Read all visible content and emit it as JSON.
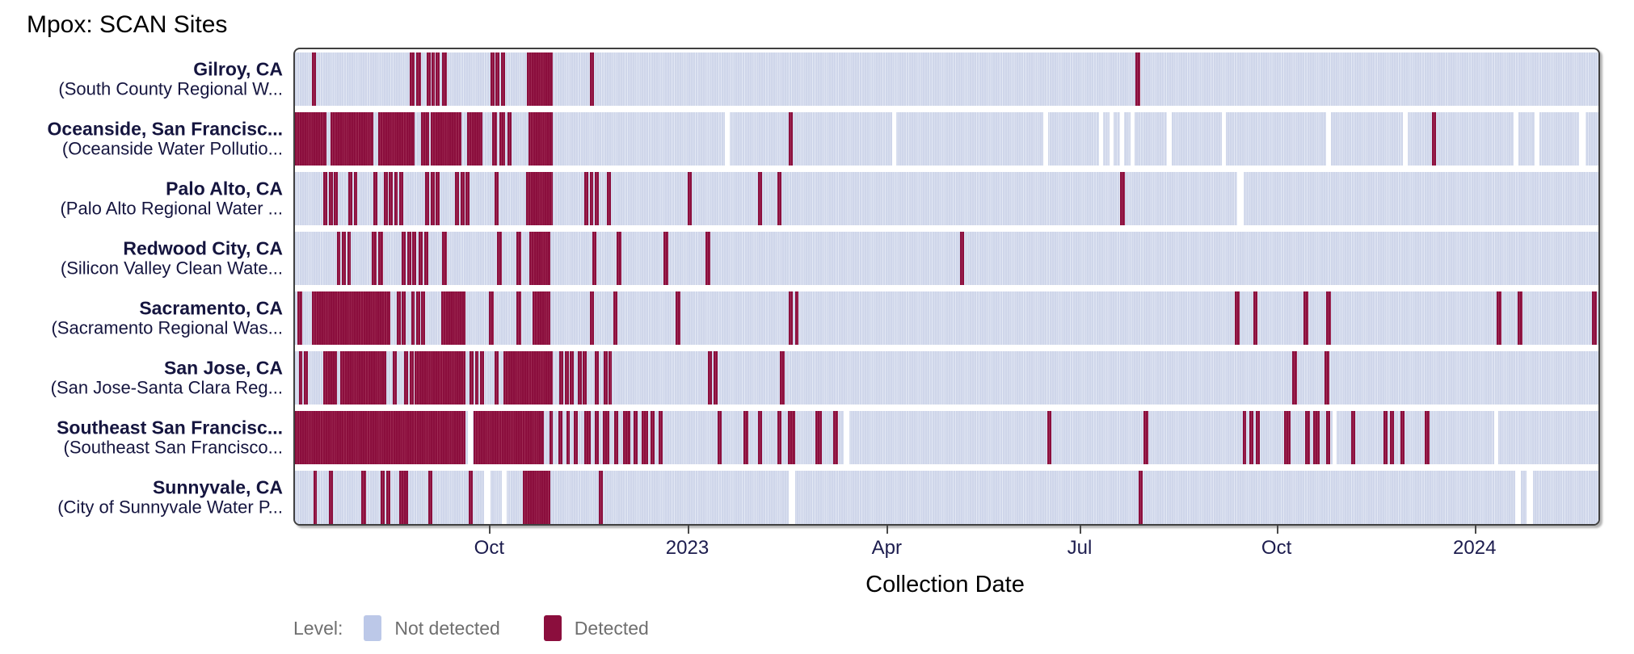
{
  "chart_data": {
    "type": "heatmap",
    "title": "Mpox: SCAN Sites",
    "xlabel": "Collection Date",
    "grid": false,
    "x_ticks": [
      {
        "label": "Oct",
        "pos_pct": 14.9
      },
      {
        "label": "2023",
        "pos_pct": 30.1
      },
      {
        "label": "Apr",
        "pos_pct": 45.4
      },
      {
        "label": "Jul",
        "pos_pct": 60.2
      },
      {
        "label": "Oct",
        "pos_pct": 75.3
      },
      {
        "label": "2024",
        "pos_pct": 90.5
      }
    ],
    "legend": {
      "title": "Level:",
      "position": "bottom-left",
      "items": [
        {
          "label": "Not detected",
          "color": "#bcc8e8"
        },
        {
          "label": "Detected",
          "color": "#8b0e3d"
        }
      ]
    },
    "colors": {
      "not_detected_base": "#cfd6ea",
      "not_detected_stripe": "#e3e8f4",
      "detected": "#8b0e3d",
      "missing": "#ffffff",
      "label_text": "#15153f",
      "tick_text": "#1c1c4e",
      "legend_text": "#6f6f6f",
      "panel_border": "#404040"
    },
    "series": [
      {
        "site": "Gilroy, CA",
        "facility": "(South County Regional W...",
        "detected_pct": [
          [
            1.3,
            0.3
          ],
          [
            8.8,
            0.35
          ],
          [
            9.3,
            0.35
          ],
          [
            10.1,
            0.3
          ],
          [
            10.45,
            0.3
          ],
          [
            10.8,
            0.3
          ],
          [
            11.3,
            0.35
          ],
          [
            15.0,
            0.3
          ],
          [
            15.4,
            0.3
          ],
          [
            15.8,
            0.3
          ],
          [
            17.8,
            2.0
          ],
          [
            22.6,
            0.35
          ],
          [
            64.5,
            0.35
          ]
        ],
        "missing_pct": []
      },
      {
        "site": "Oceanside, San Francisc...",
        "facility": "(Oceanside Water Pollutio...",
        "detected_pct": [
          [
            0,
            2.4
          ],
          [
            2.7,
            3.3
          ],
          [
            6.4,
            2.8
          ],
          [
            9.7,
            0.6
          ],
          [
            10.4,
            2.4
          ],
          [
            13.2,
            1.2
          ],
          [
            15.1,
            0.4
          ],
          [
            15.7,
            0.4
          ],
          [
            16.3,
            0.3
          ],
          [
            17.9,
            1.9
          ],
          [
            37.9,
            0.3
          ],
          [
            87.2,
            0.35
          ]
        ],
        "missing_pct": [
          [
            33.0,
            0.35
          ],
          [
            45.8,
            0.35
          ],
          [
            57.4,
            0.35
          ],
          [
            61.7,
            0.3
          ],
          [
            62.5,
            0.3
          ],
          [
            63.3,
            0.3
          ],
          [
            64.1,
            0.3
          ],
          [
            66.9,
            0.35
          ],
          [
            71.1,
            0.35
          ],
          [
            79.1,
            0.35
          ],
          [
            85.0,
            0.35
          ],
          [
            93.5,
            0.35
          ],
          [
            95.1,
            0.35
          ],
          [
            98.5,
            0.5
          ]
        ]
      },
      {
        "site": "Palo Alto, CA",
        "facility": "(Palo Alto Regional Water ...",
        "detected_pct": [
          [
            2.2,
            0.3
          ],
          [
            2.6,
            0.3
          ],
          [
            3.0,
            0.3
          ],
          [
            4.1,
            0.3
          ],
          [
            4.5,
            0.3
          ],
          [
            6.0,
            0.35
          ],
          [
            6.8,
            0.3
          ],
          [
            7.2,
            0.3
          ],
          [
            7.6,
            0.3
          ],
          [
            8.0,
            0.3
          ],
          [
            10.0,
            0.3
          ],
          [
            10.4,
            0.3
          ],
          [
            10.8,
            0.3
          ],
          [
            12.3,
            0.3
          ],
          [
            12.7,
            0.3
          ],
          [
            13.1,
            0.3
          ],
          [
            15.3,
            0.35
          ],
          [
            17.7,
            2.1
          ],
          [
            22.2,
            0.3
          ],
          [
            22.6,
            0.3
          ],
          [
            23.0,
            0.3
          ],
          [
            23.9,
            0.35
          ],
          [
            30.1,
            0.35
          ],
          [
            35.5,
            0.35
          ],
          [
            37.0,
            0.35
          ],
          [
            63.3,
            0.35
          ]
        ],
        "missing_pct": [
          [
            72.3,
            0.5
          ]
        ]
      },
      {
        "site": "Redwood City, CA",
        "facility": "(Silicon Valley Clean Wate...",
        "detected_pct": [
          [
            3.2,
            0.3
          ],
          [
            3.6,
            0.3
          ],
          [
            4.0,
            0.3
          ],
          [
            5.9,
            0.35
          ],
          [
            6.4,
            0.35
          ],
          [
            8.2,
            0.3
          ],
          [
            8.6,
            0.3
          ],
          [
            9.0,
            0.3
          ],
          [
            9.5,
            0.3
          ],
          [
            9.9,
            0.3
          ],
          [
            11.3,
            0.35
          ],
          [
            15.5,
            0.35
          ],
          [
            17.0,
            0.35
          ],
          [
            18.0,
            1.6
          ],
          [
            22.8,
            0.35
          ],
          [
            24.7,
            0.35
          ],
          [
            28.3,
            0.35
          ],
          [
            31.5,
            0.35
          ],
          [
            51.0,
            0.35
          ]
        ],
        "missing_pct": []
      },
      {
        "site": "Sacramento, CA",
        "facility": "(Sacramento Regional Was...",
        "detected_pct": [
          [
            0.2,
            0.35
          ],
          [
            1.3,
            6.0
          ],
          [
            7.8,
            0.3
          ],
          [
            8.2,
            0.3
          ],
          [
            8.9,
            0.3
          ],
          [
            9.3,
            0.3
          ],
          [
            9.7,
            0.3
          ],
          [
            11.2,
            1.9
          ],
          [
            14.9,
            0.35
          ],
          [
            17.0,
            0.35
          ],
          [
            18.2,
            1.4
          ],
          [
            22.6,
            0.35
          ],
          [
            24.4,
            0.35
          ],
          [
            29.2,
            0.35
          ],
          [
            37.9,
            0.3
          ],
          [
            38.35,
            0.3
          ],
          [
            72.1,
            0.35
          ],
          [
            73.5,
            0.35
          ],
          [
            77.4,
            0.35
          ],
          [
            79.1,
            0.35
          ],
          [
            92.2,
            0.35
          ],
          [
            93.8,
            0.35
          ],
          [
            99.5,
            0.35
          ]
        ],
        "missing_pct": []
      },
      {
        "site": "San Jose, CA",
        "facility": "(San Jose-Santa Clara Reg...",
        "detected_pct": [
          [
            0.3,
            0.28
          ],
          [
            0.7,
            0.28
          ],
          [
            2.2,
            1.0
          ],
          [
            3.5,
            3.5
          ],
          [
            7.5,
            0.3
          ],
          [
            8.4,
            0.3
          ],
          [
            8.8,
            0.3
          ],
          [
            9.2,
            3.9
          ],
          [
            13.4,
            0.3
          ],
          [
            13.8,
            0.3
          ],
          [
            14.2,
            0.3
          ],
          [
            15.3,
            0.3
          ],
          [
            16.0,
            3.8
          ],
          [
            20.3,
            0.3
          ],
          [
            20.7,
            0.3
          ],
          [
            21.1,
            0.3
          ],
          [
            21.7,
            0.3
          ],
          [
            22.1,
            0.3
          ],
          [
            23.0,
            0.3
          ],
          [
            23.7,
            0.28
          ],
          [
            24.05,
            0.28
          ],
          [
            31.7,
            0.3
          ],
          [
            32.1,
            0.3
          ],
          [
            37.2,
            0.35
          ],
          [
            76.5,
            0.35
          ],
          [
            79.0,
            0.35
          ]
        ],
        "missing_pct": []
      },
      {
        "site": "Southeast San Francisc...",
        "facility": "(Southeast San Francisco...",
        "detected_pct": [
          [
            0,
            13.1
          ],
          [
            13.7,
            5.4
          ],
          [
            19.5,
            0.3
          ],
          [
            20.2,
            0.3
          ],
          [
            20.8,
            0.3
          ],
          [
            21.4,
            0.3
          ],
          [
            22.2,
            0.5
          ],
          [
            23.0,
            0.3
          ],
          [
            23.6,
            0.5
          ],
          [
            24.5,
            0.3
          ],
          [
            25.2,
            0.5
          ],
          [
            26.0,
            0.3
          ],
          [
            26.6,
            0.5
          ],
          [
            27.3,
            0.3
          ],
          [
            27.9,
            0.3
          ],
          [
            32.4,
            0.35
          ],
          [
            34.4,
            0.35
          ],
          [
            35.5,
            0.35
          ],
          [
            37.0,
            0.35
          ],
          [
            37.8,
            0.55
          ],
          [
            39.9,
            0.55
          ],
          [
            41.3,
            0.35
          ],
          [
            57.7,
            0.35
          ],
          [
            65.1,
            0.35
          ],
          [
            72.7,
            0.3
          ],
          [
            73.2,
            0.3
          ],
          [
            73.7,
            0.3
          ],
          [
            75.9,
            0.5
          ],
          [
            77.5,
            0.35
          ],
          [
            78.1,
            0.5
          ],
          [
            79.1,
            0.3
          ],
          [
            81.0,
            0.35
          ],
          [
            83.5,
            0.3
          ],
          [
            84.0,
            0.3
          ],
          [
            84.8,
            0.35
          ],
          [
            86.7,
            0.35
          ]
        ],
        "missing_pct": [
          [
            13.25,
            0.4
          ],
          [
            42.1,
            0.4
          ],
          [
            79.6,
            0.3
          ],
          [
            92.0,
            0.3
          ]
        ]
      },
      {
        "site": "Sunnyvale, CA",
        "facility": "(City of Sunnyvale Water P...",
        "detected_pct": [
          [
            1.4,
            0.3
          ],
          [
            2.6,
            0.3
          ],
          [
            5.1,
            0.35
          ],
          [
            6.6,
            0.3
          ],
          [
            7.0,
            0.3
          ],
          [
            8.0,
            0.7
          ],
          [
            10.2,
            0.35
          ],
          [
            13.3,
            0.35
          ],
          [
            17.5,
            2.1
          ],
          [
            23.3,
            0.35
          ],
          [
            64.7,
            0.35
          ]
        ],
        "missing_pct": [
          [
            14.5,
            0.5
          ],
          [
            15.9,
            0.35
          ],
          [
            37.9,
            0.45
          ],
          [
            93.6,
            0.45
          ],
          [
            94.5,
            0.45
          ]
        ]
      }
    ]
  }
}
